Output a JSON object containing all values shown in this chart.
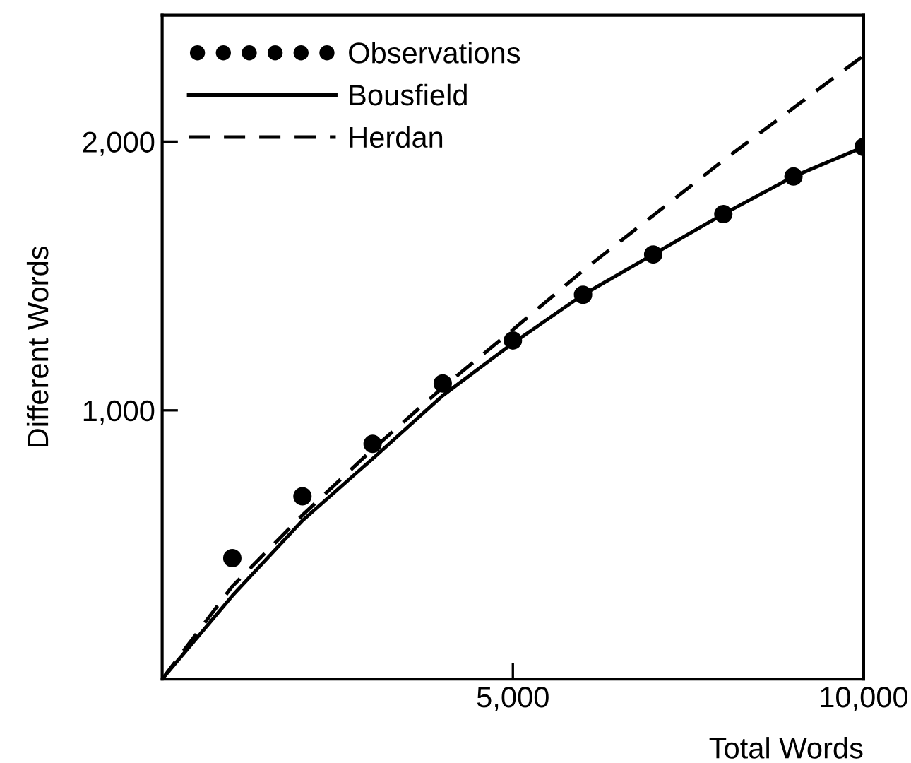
{
  "chart_data": {
    "type": "line",
    "xlabel": "Total Words",
    "ylabel": "Different Words",
    "xlim": [
      0,
      10000
    ],
    "ylim": [
      0,
      2470
    ],
    "xticks": [
      {
        "value": 5000,
        "label": "5,000"
      },
      {
        "value": 10000,
        "label": "10,000"
      }
    ],
    "yticks": [
      {
        "value": 1000,
        "label": "1,000"
      },
      {
        "value": 2000,
        "label": "2,000"
      }
    ],
    "grid": false,
    "legend": "top left",
    "series": [
      {
        "name": "Observations",
        "type": "scatter",
        "marker": "circle",
        "color": "#000000",
        "x": [
          1000,
          2000,
          3000,
          4000,
          5000,
          6000,
          7000,
          8000,
          9000,
          10000
        ],
        "values": [
          450,
          680,
          875,
          1100,
          1260,
          1430,
          1580,
          1730,
          1870,
          1980
        ]
      },
      {
        "name": "Bousfield",
        "line_style": "solid",
        "color": "#000000",
        "x": [
          0,
          1000,
          2000,
          3000,
          4000,
          5000,
          6000,
          7000,
          8000,
          9000,
          10000
        ],
        "values": [
          0,
          310,
          590,
          820,
          1055,
          1250,
          1430,
          1580,
          1730,
          1870,
          1980
        ]
      },
      {
        "name": "Herdan",
        "line_style": "dashed",
        "color": "#000000",
        "x": [
          0,
          1000,
          2000,
          3000,
          4000,
          5000,
          6000,
          7000,
          8000,
          9000,
          10000
        ],
        "values": [
          0,
          345,
          610,
          855,
          1085,
          1300,
          1520,
          1725,
          1930,
          2125,
          2320
        ]
      }
    ]
  }
}
